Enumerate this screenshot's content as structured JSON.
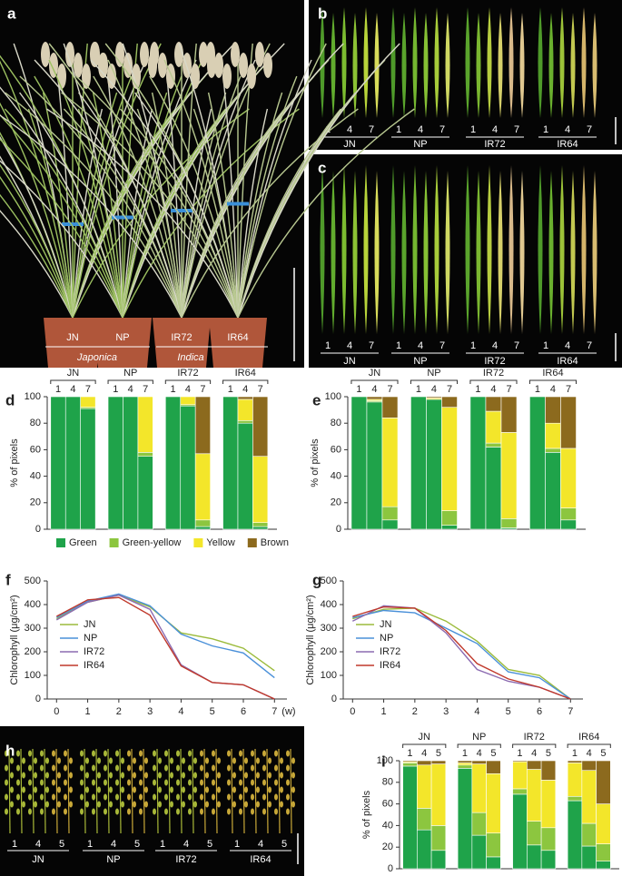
{
  "panel_letters": [
    "a",
    "b",
    "c",
    "d",
    "e",
    "f",
    "g",
    "h",
    "i"
  ],
  "photos": {
    "a": {
      "cultivars": [
        "JN",
        "NP",
        "IR72",
        "IR64"
      ],
      "subspecies": [
        "Japonica",
        "Indica"
      ]
    },
    "b": {
      "weeks": [
        "1",
        "4",
        "7"
      ],
      "cultivars": [
        "JN",
        "NP",
        "IR72",
        "IR64"
      ]
    },
    "c": {
      "weeks": [
        "1",
        "4",
        "7"
      ],
      "cultivars": [
        "JN",
        "NP",
        "IR72",
        "IR64"
      ]
    },
    "h": {
      "weeks": [
        "1",
        "4",
        "5"
      ],
      "cultivars": [
        "JN",
        "NP",
        "IR72",
        "IR64"
      ]
    }
  },
  "chart_data": [
    {
      "type": "bar",
      "stacked": true,
      "groups": [
        "JN",
        "NP",
        "IR72",
        "IR64"
      ],
      "categories": [
        "1",
        "4",
        "7",
        "1",
        "4",
        "7",
        "1",
        "4",
        "7",
        "1",
        "4",
        "7"
      ],
      "ylabel": "% of pixels",
      "ylim": [
        0,
        100
      ],
      "yticks": [
        0,
        20,
        40,
        60,
        80,
        100
      ],
      "legend": "bottom",
      "series": [
        {
          "name": "Green",
          "color": "#1fa34a",
          "values": [
            100,
            100,
            91,
            100,
            100,
            55,
            100,
            93,
            2,
            100,
            80,
            2
          ]
        },
        {
          "name": "Green-yellow",
          "color": "#8cc63f",
          "values": [
            0,
            0,
            1,
            0,
            0,
            3,
            0,
            1,
            5,
            0,
            2,
            3
          ]
        },
        {
          "name": "Yellow",
          "color": "#f3e62a",
          "values": [
            0,
            0,
            8,
            0,
            0,
            42,
            0,
            6,
            50,
            0,
            16,
            50
          ]
        },
        {
          "name": "Brown",
          "color": "#8c6a1e",
          "values": [
            0,
            0,
            0,
            0,
            0,
            0,
            0,
            0,
            43,
            0,
            2,
            45
          ]
        }
      ]
    },
    {
      "type": "bar",
      "stacked": true,
      "groups": [
        "JN",
        "NP",
        "IR72",
        "IR64"
      ],
      "categories": [
        "1",
        "4",
        "7",
        "1",
        "4",
        "7",
        "1",
        "4",
        "7",
        "1",
        "4",
        "7"
      ],
      "ylabel": "% of pixels",
      "ylim": [
        0,
        100
      ],
      "yticks": [
        0,
        20,
        40,
        60,
        80,
        100
      ],
      "series": [
        {
          "color": "#1fa34a",
          "values": [
            100,
            96,
            7,
            100,
            98,
            3,
            100,
            62,
            1,
            100,
            58,
            7
          ]
        },
        {
          "color": "#8cc63f",
          "values": [
            0,
            1,
            10,
            0,
            0,
            11,
            0,
            3,
            7,
            0,
            3,
            9
          ]
        },
        {
          "color": "#f3e62a",
          "values": [
            0,
            1,
            67,
            0,
            1,
            78,
            0,
            24,
            65,
            0,
            19,
            45
          ]
        },
        {
          "color": "#8c6a1e",
          "values": [
            0,
            2,
            16,
            0,
            1,
            8,
            0,
            11,
            27,
            0,
            20,
            39
          ]
        }
      ]
    },
    {
      "type": "line",
      "ylabel": "Chlorophyll (μg/cm²)",
      "xlabel": "(w)",
      "x": [
        0,
        1,
        2,
        3,
        4,
        5,
        6,
        7
      ],
      "xlim": [
        -0.3,
        7.4
      ],
      "xticks": [
        0,
        1,
        2,
        3,
        4,
        5,
        6,
        7
      ],
      "ylim": [
        0,
        500
      ],
      "yticks": [
        0,
        100,
        200,
        300,
        400,
        500
      ],
      "legend": "left",
      "series": [
        {
          "name": "JN",
          "color": "#9bbb3b",
          "values": [
            340,
            410,
            440,
            390,
            280,
            255,
            215,
            120
          ]
        },
        {
          "name": "NP",
          "color": "#4a90d9",
          "values": [
            345,
            415,
            445,
            395,
            275,
            225,
            195,
            90
          ]
        },
        {
          "name": "IR72",
          "color": "#8c6bb1",
          "values": [
            335,
            410,
            440,
            380,
            145,
            70,
            60,
            0
          ]
        },
        {
          "name": "IR64",
          "color": "#c0392b",
          "values": [
            350,
            420,
            430,
            355,
            140,
            70,
            60,
            0
          ]
        }
      ]
    },
    {
      "type": "line",
      "ylabel": "Chlorophyll (μg/cm²)",
      "x": [
        0,
        1,
        2,
        3,
        4,
        5,
        6,
        7
      ],
      "xlim": [
        -0.3,
        7.4
      ],
      "xticks": [
        0,
        1,
        2,
        3,
        4,
        5,
        6,
        7
      ],
      "ylim": [
        0,
        500
      ],
      "yticks": [
        0,
        100,
        200,
        300,
        400,
        500
      ],
      "legend": "left",
      "series": [
        {
          "name": "JN",
          "color": "#9bbb3b",
          "values": [
            340,
            380,
            385,
            330,
            245,
            125,
            100,
            0
          ]
        },
        {
          "name": "NP",
          "color": "#4a90d9",
          "values": [
            345,
            375,
            365,
            300,
            235,
            115,
            90,
            0
          ]
        },
        {
          "name": "IR72",
          "color": "#8c6bb1",
          "values": [
            330,
            395,
            385,
            280,
            125,
            75,
            50,
            0
          ]
        },
        {
          "name": "IR64",
          "color": "#c0392b",
          "values": [
            350,
            390,
            385,
            290,
            150,
            85,
            50,
            0
          ]
        }
      ]
    },
    {
      "type": "bar",
      "stacked": true,
      "groups": [
        "JN",
        "NP",
        "IR72",
        "IR64"
      ],
      "categories": [
        "1",
        "4",
        "5",
        "1",
        "4",
        "5",
        "1",
        "4",
        "5",
        "1",
        "4",
        "5"
      ],
      "ylabel": "% of pixels",
      "ylim": [
        0,
        100
      ],
      "yticks": [
        0,
        20,
        40,
        60,
        80,
        100
      ],
      "series": [
        {
          "color": "#1fa34a",
          "values": [
            95,
            36,
            17,
            93,
            31,
            11,
            69,
            22,
            17,
            63,
            21,
            7
          ]
        },
        {
          "color": "#8cc63f",
          "values": [
            3,
            20,
            23,
            3,
            21,
            22,
            5,
            22,
            21,
            4,
            21,
            16
          ]
        },
        {
          "color": "#f3e62a",
          "values": [
            1,
            40,
            57,
            2,
            45,
            55,
            25,
            48,
            44,
            31,
            49,
            37
          ]
        },
        {
          "color": "#8c6a1e",
          "values": [
            1,
            4,
            3,
            2,
            3,
            12,
            1,
            8,
            18,
            2,
            9,
            40
          ]
        }
      ]
    }
  ]
}
